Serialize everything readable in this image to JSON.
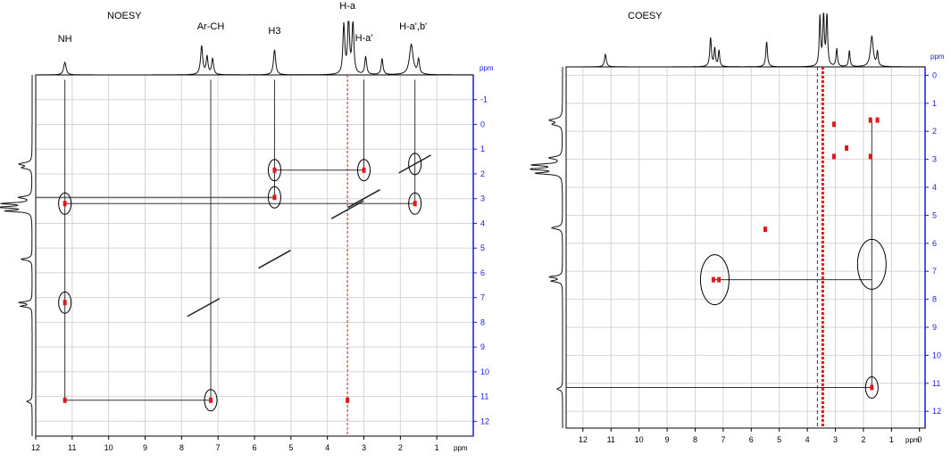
{
  "colors": {
    "frame": "#000000",
    "grid": "#d4d4d4",
    "axis_blue": "#1a1aee",
    "cross_peak": "#e01818",
    "contour_dark": "#222222",
    "spectrum": "#111111"
  },
  "chart_data": [
    {
      "type": "scatter",
      "title": "NOESY",
      "x_unit": "ppm",
      "y_unit": "ppm",
      "xlim": [
        12,
        0
      ],
      "ylim": [
        -2,
        12.6
      ],
      "x_ticks": [
        "12",
        "11",
        "10",
        "9",
        "8",
        "7",
        "6",
        "5",
        "4",
        "3",
        "2",
        "1"
      ],
      "y_ticks": [
        "-1",
        "0",
        "1",
        "2",
        "3",
        "4",
        "5",
        "6",
        "7",
        "8",
        "9",
        "10",
        "11",
        "12"
      ],
      "peak_labels": [
        {
          "label": "NH",
          "ppm": 11.2
        },
        {
          "label": "Ar-CH",
          "ppm": 7.2
        },
        {
          "label": "H3",
          "ppm": 5.45
        },
        {
          "label": "H-a",
          "ppm": 3.45
        },
        {
          "label": "H-a'",
          "ppm": 3.0
        },
        {
          "label": "H-a',b'",
          "ppm": 1.65
        }
      ],
      "diagonal": [
        {
          "x": 7.4,
          "y": 7.4
        },
        {
          "x": 5.45,
          "y": 5.45
        },
        {
          "x": 3.45,
          "y": 3.45
        },
        {
          "x": 3.0,
          "y": 3.0
        },
        {
          "x": 1.6,
          "y": 1.6
        }
      ],
      "cross_peaks": [
        {
          "x": 11.2,
          "y": 3.2
        },
        {
          "x": 11.2,
          "y": 7.2
        },
        {
          "x": 11.2,
          "y": 11.15
        },
        {
          "x": 7.2,
          "y": 11.15
        },
        {
          "x": 5.45,
          "y": 1.85
        },
        {
          "x": 5.45,
          "y": 2.95
        },
        {
          "x": 3.0,
          "y": 1.85
        },
        {
          "x": 1.6,
          "y": 3.2
        },
        {
          "x": 3.45,
          "y": 11.15
        }
      ],
      "circled": [
        {
          "x": 11.2,
          "y": 3.2
        },
        {
          "x": 11.2,
          "y": 7.2
        },
        {
          "x": 7.2,
          "y": 11.15
        },
        {
          "x": 5.45,
          "y": 1.85
        },
        {
          "x": 5.45,
          "y": 2.95
        },
        {
          "x": 3.0,
          "y": 1.85
        },
        {
          "x": 1.6,
          "y": 3.2
        },
        {
          "x": 1.6,
          "y": 1.6
        }
      ],
      "dashed_vline_ppm": 3.45,
      "grid": true
    },
    {
      "type": "scatter",
      "title": "COESY",
      "x_unit": "ppm",
      "y_unit": "ppm",
      "xlim": [
        12.6,
        -0.2
      ],
      "ylim": [
        -0.3,
        12.6
      ],
      "x_ticks": [
        "12",
        "11",
        "10",
        "9",
        "8",
        "7",
        "6",
        "5",
        "4",
        "3",
        "2",
        "1",
        "0"
      ],
      "y_ticks": [
        "0",
        "1",
        "2",
        "3",
        "4",
        "5",
        "6",
        "7",
        "8",
        "9",
        "10",
        "11",
        "12"
      ],
      "cross_peaks": [
        {
          "x": 3.05,
          "y": 1.75
        },
        {
          "x": 3.05,
          "y": 2.9
        },
        {
          "x": 2.6,
          "y": 2.6
        },
        {
          "x": 1.75,
          "y": 1.6
        },
        {
          "x": 1.5,
          "y": 1.6
        },
        {
          "x": 1.75,
          "y": 2.9
        },
        {
          "x": 5.5,
          "y": 5.5
        },
        {
          "x": 7.35,
          "y": 7.3
        },
        {
          "x": 7.15,
          "y": 7.3
        },
        {
          "x": 1.7,
          "y": 11.15
        }
      ],
      "circled": [
        {
          "x": 7.3,
          "y": 7.3
        },
        {
          "x": 1.7,
          "y": 6.75
        },
        {
          "x": 1.7,
          "y": 11.15
        }
      ],
      "dashed_vline_ppm": 3.45,
      "grid": true
    }
  ]
}
